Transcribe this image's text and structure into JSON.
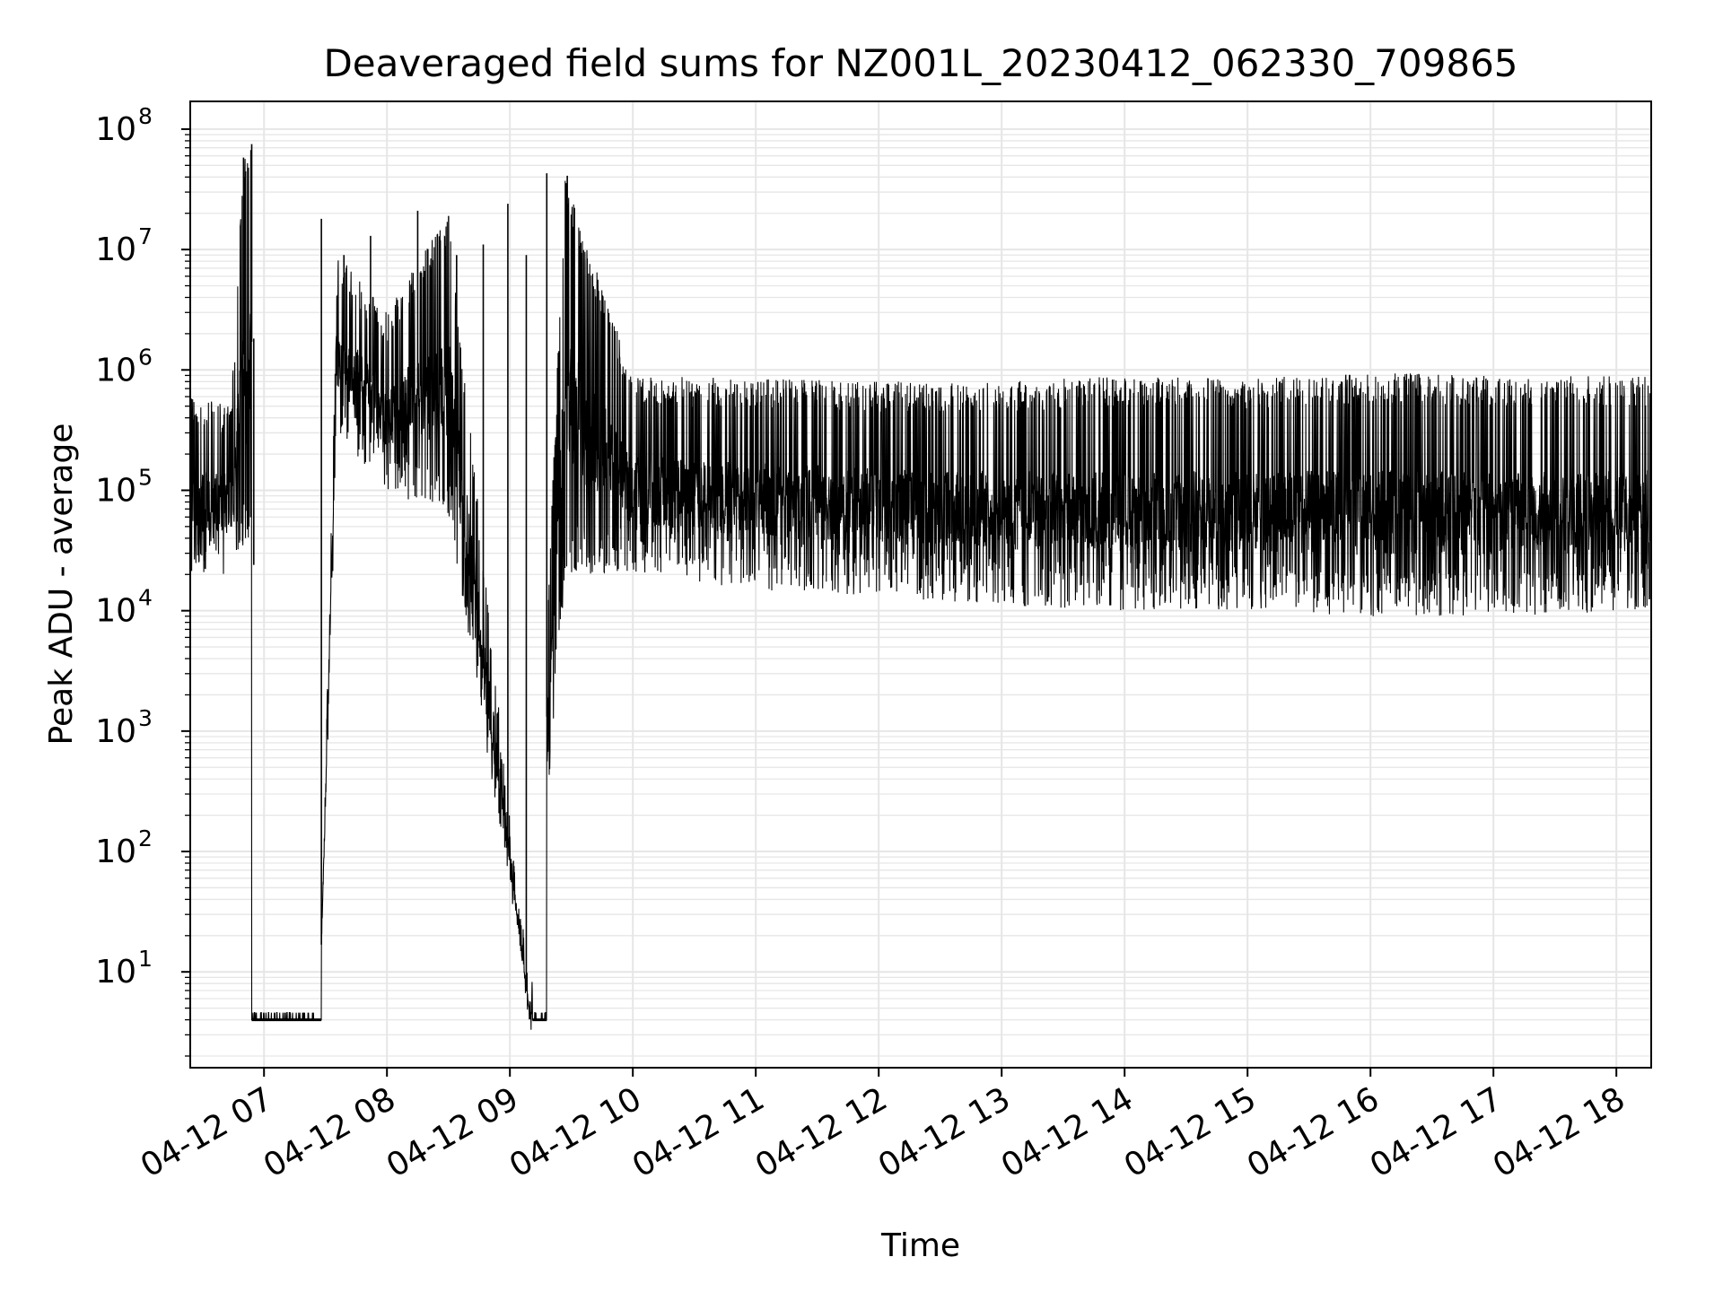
{
  "chart_data": {
    "type": "line",
    "title": "Deaveraged field sums for NZ001L_20230412_062330_709865",
    "xlabel": "Time",
    "ylabel": "Peak ADU - average",
    "yscale": "log",
    "grid": true,
    "line_color": "#000000",
    "grid_color": "#e6e6e6",
    "background": "#ffffff",
    "xlim": [
      "2023-04-12 06:24",
      "2023-04-12 18:17"
    ],
    "ylim": [
      1.6,
      170000000
    ],
    "x_ticks": [
      {
        "t": "2023-04-12 07:00",
        "label": "04-12 07"
      },
      {
        "t": "2023-04-12 08:00",
        "label": "04-12 08"
      },
      {
        "t": "2023-04-12 09:00",
        "label": "04-12 09"
      },
      {
        "t": "2023-04-12 10:00",
        "label": "04-12 10"
      },
      {
        "t": "2023-04-12 11:00",
        "label": "04-12 11"
      },
      {
        "t": "2023-04-12 12:00",
        "label": "04-12 12"
      },
      {
        "t": "2023-04-12 13:00",
        "label": "04-12 13"
      },
      {
        "t": "2023-04-12 14:00",
        "label": "04-12 14"
      },
      {
        "t": "2023-04-12 15:00",
        "label": "04-12 15"
      },
      {
        "t": "2023-04-12 16:00",
        "label": "04-12 16"
      },
      {
        "t": "2023-04-12 17:00",
        "label": "04-12 17"
      },
      {
        "t": "2023-04-12 18:00",
        "label": "04-12 18"
      }
    ],
    "y_ticks": [
      {
        "value": 10,
        "label": "10",
        "exp": "1"
      },
      {
        "value": 100,
        "label": "10",
        "exp": "2"
      },
      {
        "value": 1000,
        "label": "10",
        "exp": "3"
      },
      {
        "value": 10000,
        "label": "10",
        "exp": "4"
      },
      {
        "value": 100000,
        "label": "10",
        "exp": "5"
      },
      {
        "value": 1000000,
        "label": "10",
        "exp": "6"
      },
      {
        "value": 10000000,
        "label": "10",
        "exp": "7"
      },
      {
        "value": 100000000,
        "label": "10",
        "exp": "8"
      }
    ],
    "series": [
      {
        "style": "dense noisy line",
        "envelope": [
          {
            "t": "2023-04-12 06:24",
            "low": 20000,
            "high": 600000
          },
          {
            "t": "2023-04-12 06:44",
            "low": 20000,
            "high": 500000
          },
          {
            "t": "2023-04-12 06:50",
            "low": 30000,
            "high": 60000000
          },
          {
            "t": "2023-04-12 06:56",
            "low": 50000,
            "high": 75000000
          },
          {
            "t": "2023-04-12 07:27",
            "low": 4,
            "high": 4
          },
          {
            "t": "2023-04-12 07:36",
            "low": 300000,
            "high": 9000000
          },
          {
            "t": "2023-04-12 08:00",
            "low": 100000,
            "high": 3000000
          },
          {
            "t": "2023-04-12 08:30",
            "low": 60000,
            "high": 20000000
          },
          {
            "t": "2023-04-12 09:10",
            "low": 4,
            "high": 4
          },
          {
            "t": "2023-04-12 09:27",
            "low": 20000,
            "high": 40000000
          },
          {
            "t": "2023-04-12 10:00",
            "low": 20000,
            "high": 900000
          },
          {
            "t": "2023-04-12 11:00",
            "low": 15000,
            "high": 850000
          },
          {
            "t": "2023-04-12 12:00",
            "low": 13000,
            "high": 800000
          },
          {
            "t": "2023-04-12 13:00",
            "low": 11000,
            "high": 800000
          },
          {
            "t": "2023-04-12 14:00",
            "low": 10000,
            "high": 900000
          },
          {
            "t": "2023-04-12 15:00",
            "low": 10000,
            "high": 850000
          },
          {
            "t": "2023-04-12 16:00",
            "low": 9000,
            "high": 950000
          },
          {
            "t": "2023-04-12 17:00",
            "low": 9000,
            "high": 900000
          },
          {
            "t": "2023-04-12 18:17",
            "low": 10000,
            "high": 880000
          }
        ],
        "spikes": [
          {
            "t": "2023-04-12 06:50",
            "value": 58000000
          },
          {
            "t": "2023-04-12 06:54",
            "value": 75000000
          },
          {
            "t": "2023-04-12 06:55",
            "value": 24000
          },
          {
            "t": "2023-04-12 07:28",
            "value": 18000000
          },
          {
            "t": "2023-04-12 07:39",
            "value": 9000000
          },
          {
            "t": "2023-04-12 07:52",
            "value": 13000000
          },
          {
            "t": "2023-04-12 08:15",
            "value": 21000000
          },
          {
            "t": "2023-04-12 08:34",
            "value": 9000000
          },
          {
            "t": "2023-04-12 08:47",
            "value": 11000000
          },
          {
            "t": "2023-04-12 08:59",
            "value": 24000000
          },
          {
            "t": "2023-04-12 09:08",
            "value": 9000000
          },
          {
            "t": "2023-04-12 09:18",
            "value": 43000000
          },
          {
            "t": "2023-04-12 09:28",
            "value": 41000000
          }
        ],
        "floor_segments": [
          {
            "start": "2023-04-12 06:54",
            "end": "2023-04-12 07:28",
            "value": 4
          },
          {
            "start": "2023-04-12 09:11",
            "end": "2023-04-12 09:18",
            "value": 4
          }
        ]
      }
    ]
  }
}
